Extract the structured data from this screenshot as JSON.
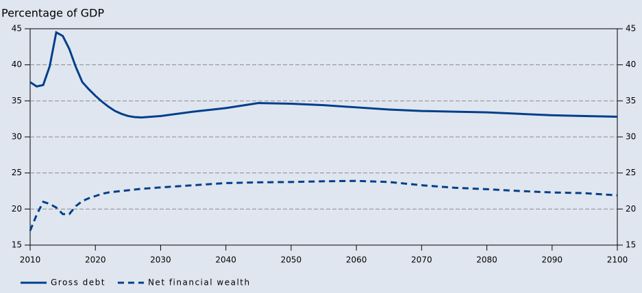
{
  "chart_data": {
    "type": "line",
    "title": "Percentage of GDP",
    "x": [
      2010,
      2011,
      2012,
      2013,
      2014,
      2015,
      2016,
      2017,
      2018,
      2019,
      2020,
      2021,
      2022,
      2023,
      2024,
      2025,
      2026,
      2027,
      2030,
      2035,
      2040,
      2045,
      2050,
      2055,
      2060,
      2065,
      2070,
      2075,
      2080,
      2085,
      2090,
      2095,
      2100
    ],
    "series": [
      {
        "name": "Gross debt",
        "color": "#003e8a",
        "dash": false,
        "values": [
          37.6,
          37.0,
          37.2,
          39.8,
          44.5,
          44.0,
          42.2,
          39.7,
          37.6,
          36.6,
          35.7,
          34.9,
          34.2,
          33.6,
          33.2,
          32.9,
          32.75,
          32.7,
          32.9,
          33.5,
          34.0,
          34.7,
          34.6,
          34.4,
          34.1,
          33.8,
          33.6,
          33.5,
          33.4,
          33.2,
          33.0,
          32.9,
          32.8
        ]
      },
      {
        "name": "Net financial wealth",
        "color": "#003e8a",
        "dash": true,
        "values": [
          17.0,
          19.2,
          21.0,
          20.7,
          20.2,
          19.3,
          19.3,
          20.4,
          21.1,
          21.5,
          21.8,
          22.1,
          22.3,
          22.4,
          22.5,
          22.6,
          22.7,
          22.8,
          23.0,
          23.3,
          23.6,
          23.7,
          23.75,
          23.85,
          23.9,
          23.75,
          23.3,
          22.95,
          22.75,
          22.5,
          22.3,
          22.2,
          21.9
        ]
      }
    ],
    "xlim": [
      2010,
      2100
    ],
    "xticks": [
      2010,
      2020,
      2030,
      2040,
      2050,
      2060,
      2070,
      2080,
      2090,
      2100
    ],
    "ylim": [
      15,
      45
    ],
    "yticks": [
      15,
      20,
      25,
      30,
      35,
      40,
      45
    ],
    "y2lim": [
      15,
      45
    ],
    "y2ticks": [
      15,
      20,
      25,
      30,
      35,
      40,
      45
    ],
    "grid": true,
    "legend": "bottom-left"
  }
}
